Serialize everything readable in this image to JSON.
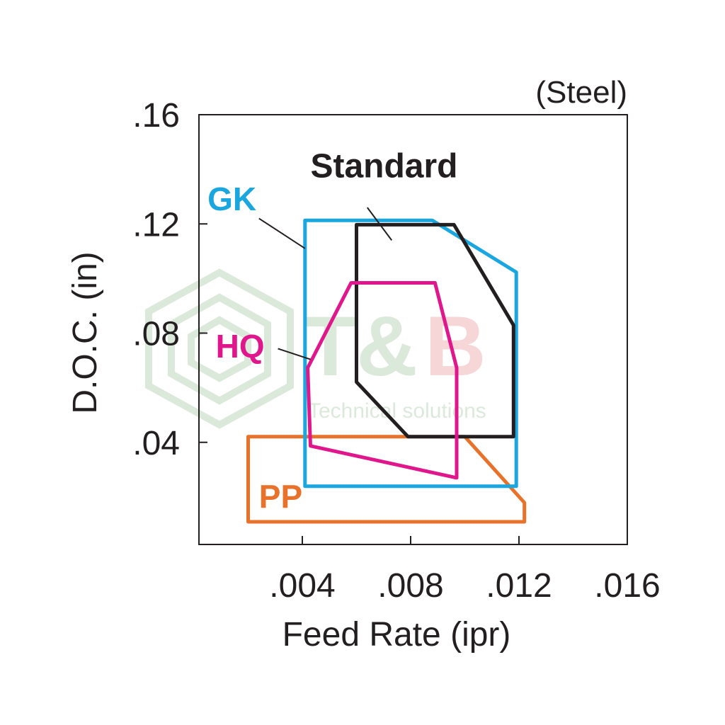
{
  "chart_data": {
    "type": "area",
    "subtitle": "(Steel)",
    "xlabel": "Feed Rate (ipr)",
    "ylabel": "D.O.C. (in)",
    "xlim": [
      0,
      0.016
    ],
    "ylim": [
      0,
      0.16
    ],
    "x_ticks": [
      {
        "value": 0.004,
        "label": ".004"
      },
      {
        "value": 0.008,
        "label": ".008"
      },
      {
        "value": 0.012,
        "label": ".012"
      },
      {
        "value": 0.016,
        "label": ".016"
      }
    ],
    "y_ticks": [
      {
        "value": 0.04,
        "label": ".04"
      },
      {
        "value": 0.08,
        "label": ".08"
      },
      {
        "value": 0.12,
        "label": ".12"
      },
      {
        "value": 0.16,
        "label": ".16"
      }
    ],
    "grid": false,
    "series": [
      {
        "name": "PP",
        "color": "#e8722a",
        "polygon": [
          [
            0.002,
            0.0421
          ],
          [
            0.01,
            0.0421
          ],
          [
            0.0122,
            0.0179
          ],
          [
            0.0122,
            0.0109
          ],
          [
            0.002,
            0.0109
          ]
        ],
        "label_at": [
          0.0024,
          0.016
        ]
      },
      {
        "name": "GK",
        "color": "#1aa6de",
        "polygon": [
          [
            0.0041,
            0.1213
          ],
          [
            0.0088,
            0.1213
          ],
          [
            0.0119,
            0.1023
          ],
          [
            0.0119,
            0.0239
          ],
          [
            0.0041,
            0.0239
          ]
        ],
        "label_at": [
          0.0005,
          0.125
        ],
        "leader": [
          [
            0.0024,
            0.122
          ],
          [
            0.0041,
            0.111
          ]
        ]
      },
      {
        "name": "Standard",
        "color": "#231f20",
        "polygon": [
          [
            0.006,
            0.1197
          ],
          [
            0.0096,
            0.1197
          ],
          [
            0.0118,
            0.0829
          ],
          [
            0.0118,
            0.0421
          ],
          [
            0.0079,
            0.0421
          ],
          [
            0.006,
            0.0621
          ]
        ],
        "label_at": [
          0.0043,
          0.137
        ],
        "leader": [
          [
            0.0064,
            0.126
          ],
          [
            0.0073,
            0.114
          ]
        ]
      },
      {
        "name": "HQ",
        "color": "#e0178c",
        "polygon": [
          [
            0.0058,
            0.0984
          ],
          [
            0.0089,
            0.0984
          ],
          [
            0.0097,
            0.0673
          ],
          [
            0.0097,
            0.027
          ],
          [
            0.0043,
            0.0387
          ],
          [
            0.0042,
            0.0673
          ]
        ],
        "label_at": [
          0.0008,
          0.071
        ],
        "leader": [
          [
            0.0031,
            0.0743
          ],
          [
            0.0043,
            0.0704
          ]
        ]
      }
    ]
  },
  "watermark": {
    "title": "T&B",
    "subtitle": "Technical solutions"
  }
}
